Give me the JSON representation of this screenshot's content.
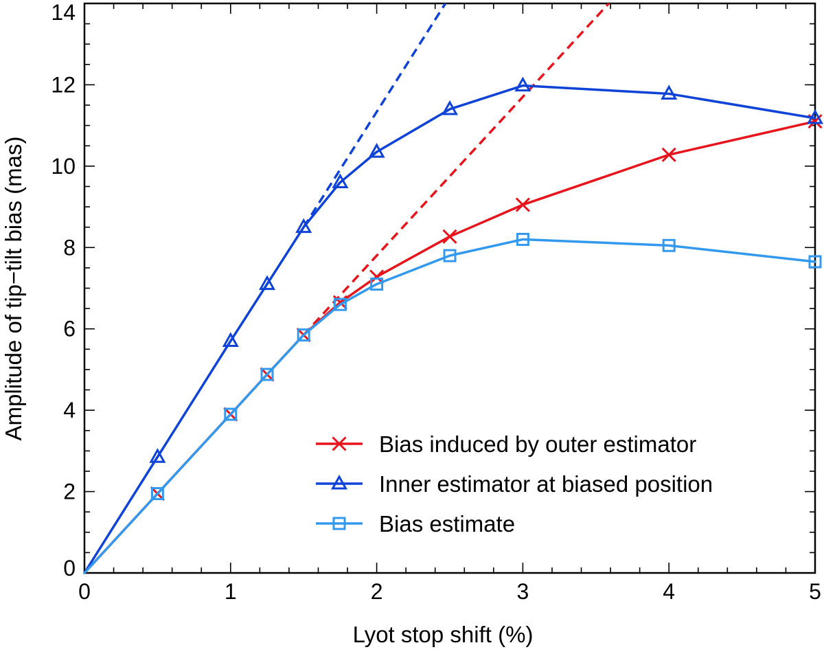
{
  "chart_data": {
    "type": "line",
    "title": "",
    "xlabel": "Lyot stop shift (%)",
    "ylabel": "Amplitude of tip−tilt bias (mas)",
    "xlim": [
      0,
      5
    ],
    "ylim": [
      0,
      14
    ],
    "x_ticks": [
      "0",
      "1",
      "2",
      "3",
      "4",
      "5"
    ],
    "y_ticks": [
      "0",
      "2",
      "4",
      "6",
      "8",
      "10",
      "12",
      "14"
    ],
    "grid": false,
    "legend_position": "bottom-right",
    "series": [
      {
        "name": "Bias induced by outer estimator",
        "color": "#e8141c",
        "marker": "x",
        "x": [
          0,
          0.5,
          1,
          1.25,
          1.5,
          1.75,
          2,
          2.5,
          3,
          4,
          5
        ],
        "y": [
          0,
          1.95,
          3.9,
          4.88,
          5.85,
          6.65,
          7.28,
          8.27,
          9.05,
          10.28,
          11.1
        ]
      },
      {
        "name": "Inner estimator at biased position",
        "color": "#0f43d8",
        "marker": "triangle",
        "x": [
          0,
          0.5,
          1,
          1.25,
          1.5,
          1.75,
          2,
          2.5,
          3,
          4,
          5
        ],
        "y": [
          0,
          2.85,
          5.7,
          7.1,
          8.5,
          9.6,
          10.35,
          11.4,
          11.98,
          11.78,
          11.18
        ]
      },
      {
        "name": "Bias estimate",
        "color": "#3399ee",
        "marker": "square",
        "x": [
          0,
          0.5,
          1,
          1.25,
          1.5,
          1.75,
          2,
          2.5,
          3,
          4,
          5
        ],
        "y": [
          0,
          1.95,
          3.9,
          4.88,
          5.85,
          6.6,
          7.1,
          7.8,
          8.2,
          8.05,
          7.65
        ]
      }
    ],
    "reference_lines": [
      {
        "name": "linear extrapolation (inner)",
        "color": "#0f43d8",
        "style": "dashed",
        "x": [
          1.5,
          2.5
        ],
        "y": [
          8.5,
          14.17
        ]
      },
      {
        "name": "linear extrapolation (outer)",
        "color": "#e8141c",
        "style": "dashed",
        "x": [
          1.5,
          3.65
        ],
        "y": [
          5.85,
          14.24
        ]
      }
    ]
  }
}
